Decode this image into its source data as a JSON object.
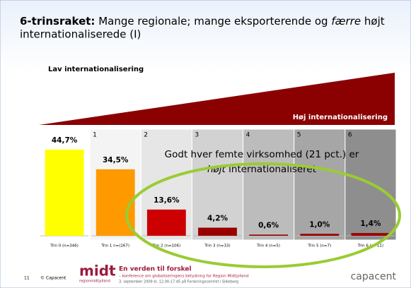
{
  "chart_data": {
    "type": "bar",
    "title": [
      "6-trinsraket:",
      "Mange regionale; mange eksporterende og",
      "færre",
      "højt",
      "internationaliserede (I)"
    ],
    "wedge_labels": [
      "Lav internationalisering",
      "Høj internationalisering"
    ],
    "annotation": [
      "Godt hver femte virksomhed (21 pct.) er",
      "højt",
      "internationaliseret"
    ],
    "categories": [
      "Trin 0 (n=346)",
      "Trin 1 n=(267)",
      "Trin 2 (n=106)",
      "Trin 3 (n=33)",
      "Trin 4 (n=5)",
      "Trin 5 (n=7)",
      "Trin 6 (n=11)"
    ],
    "column_numbers": [
      1,
      2,
      3,
      4,
      5,
      6
    ],
    "values": [
      44.7,
      34.5,
      13.6,
      4.2,
      0.6,
      1.0,
      1.4
    ],
    "value_labels": [
      "44,7%",
      "34,5%",
      "13,6%",
      "4,2%",
      "0,6%",
      "1,0%",
      "1,4%"
    ],
    "colors": [
      "#ffff00",
      "#ff9900",
      "#cc0000",
      "#990000",
      "#990000",
      "#990000",
      "#990000"
    ],
    "footer": {
      "page": "11",
      "copyright": "© Capacent",
      "logo": "midt",
      "logo_sub": "regionmidtjylland",
      "event": "En verden til forskel",
      "event_sub": "– konference om globaliseringens betydning for Region Midtjylland",
      "event_date": "3. september 2009 kl. 12.00-17.45 på Forskningscentret i Silkeborg",
      "brand": "capacent"
    }
  }
}
